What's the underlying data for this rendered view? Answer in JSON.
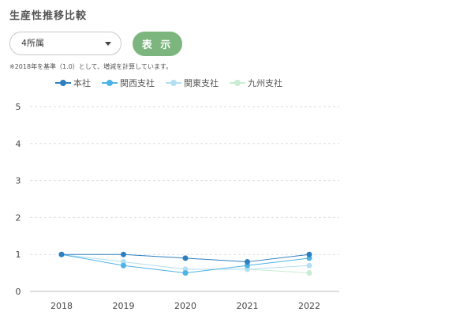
{
  "header": {
    "title": "生産性推移比較"
  },
  "filter": {
    "selected": "4所属",
    "show_label": "表 示"
  },
  "note": "※2018年を基準（1.0）として、増減を計算しています。",
  "chart_data": {
    "type": "line",
    "x": [
      "2018",
      "2019",
      "2020",
      "2021",
      "2022"
    ],
    "yticks": [
      "0",
      "1",
      "2",
      "3",
      "4",
      "5"
    ],
    "ylim": [
      0,
      5
    ],
    "grid": true,
    "legend_position": "top",
    "series": [
      {
        "name": "本社",
        "color": "#2f7fbf",
        "values": [
          1.0,
          1.0,
          0.9,
          0.8,
          1.0
        ]
      },
      {
        "name": "関西支社",
        "color": "#4db3e6",
        "values": [
          1.0,
          0.7,
          0.5,
          0.7,
          0.9
        ]
      },
      {
        "name": "関東支社",
        "color": "#b5dff3",
        "values": [
          1.0,
          0.8,
          0.6,
          0.6,
          0.7
        ]
      },
      {
        "name": "九州支社",
        "color": "#c9ecd2",
        "values": [
          1.0,
          0.8,
          0.6,
          0.6,
          0.5
        ]
      }
    ]
  }
}
